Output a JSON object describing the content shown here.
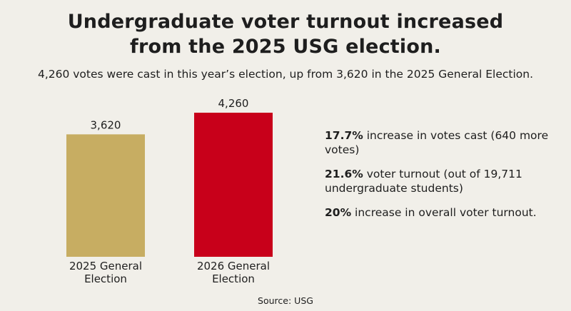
{
  "header": {
    "title_line1": "Undergraduate voter turnout increased",
    "title_line2": "from the 2025 USG election.",
    "subtitle": "4,260 votes were cast in this year’s election, up from 3,620 in the 2025 General Election."
  },
  "chart_data": {
    "type": "bar",
    "categories": [
      "2025 General Election",
      "2026 General Election"
    ],
    "category_lines": [
      [
        "2025 General",
        "Election"
      ],
      [
        "2026 General",
        "Election"
      ]
    ],
    "values": [
      3620,
      4260
    ],
    "value_labels": [
      "3,620",
      "4,260"
    ],
    "colors": [
      "#c7ad62",
      "#c8001a"
    ],
    "title": "Undergraduate voter turnout increased from the 2025 USG election.",
    "xlabel": "",
    "ylabel": "",
    "ylim": [
      0,
      4260
    ]
  },
  "notes": [
    {
      "bold": "17.7%",
      "text": " increase in votes cast (640 more votes)"
    },
    {
      "bold": "21.6%",
      "text": " voter turnout (out of 19,711 undergraduate students)"
    },
    {
      "bold": "20%",
      "text": " increase in overall voter turnout."
    }
  ],
  "footer": {
    "source": "Source: USG"
  }
}
